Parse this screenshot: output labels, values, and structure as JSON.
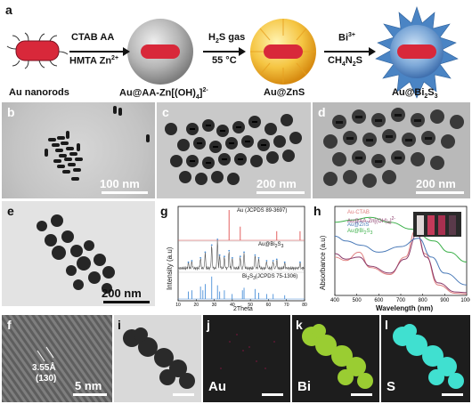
{
  "figure": {
    "panel_labels": {
      "a": "a",
      "b": "b",
      "c": "c",
      "d": "d",
      "e": "e",
      "f": "f",
      "g": "g",
      "h": "h",
      "i": "i",
      "j": "j",
      "k": "k",
      "l": "l"
    },
    "scheme": {
      "step1_top": "CTAB  AA",
      "step1_bottom": "HMTA  Zn",
      "step1_bottom_sup": "2+",
      "step2_top": "H",
      "step2_top_sub": "2",
      "step2_top_rest": "S gas",
      "step2_bottom": "55 °C",
      "step3_top": "Bi",
      "step3_top_sup": "3+",
      "step3_bottom": "CH",
      "step3_bottom_sub1": "4",
      "step3_bottom_mid": "N",
      "step3_bottom_sub2": "2",
      "step3_bottom_end": "S",
      "names": [
        "Au nanorods",
        "Au@AA-Zn[(OH)",
        "Au@ZnS",
        "Au@Bi"
      ],
      "name2_sub": "4",
      "name2_end": "]",
      "name2_sup": "2-",
      "name4_sub": "2",
      "name4_mid": "S",
      "name4_sub2": "3"
    },
    "scalebars": {
      "b": "100 nm",
      "c": "200 nm",
      "d": "200 nm",
      "e": "200 nm",
      "f": "5 nm"
    },
    "hrtem": {
      "spacing": "3.55Å",
      "plane": "(130)"
    },
    "maps": {
      "j": "Au",
      "k": "Bi",
      "l": "S"
    },
    "colors": {
      "au_rod": "#d8283a",
      "shell_gray": "#9c9c9c",
      "shell_yellow": "#f2b02c",
      "shell_blue": "#4a84c4",
      "bi_map": "#9acd32",
      "s_map": "#40e0d0",
      "au_map": "#5a1430"
    }
  },
  "chart_data": [
    {
      "type": "line",
      "panel": "g",
      "ylabel": "Intensity (a.u)",
      "xlabel": "2Theta",
      "x_ticks": [
        "10",
        "20",
        "30",
        "40",
        "50",
        "60",
        "70",
        "80"
      ],
      "xlim": [
        10,
        80
      ],
      "annotations": [
        "Au (JCPDS 89-3697)",
        "Au@Bi",
        "Bi",
        "(JCPDS 75-1306)"
      ],
      "annotation_subs": {
        "au_bi": "2",
        "au_bi_end": "S",
        "au_bi_sub2": "3",
        "bi2s3_a": "2",
        "bi2s3_mid": "S",
        "bi2s3_b": "3"
      },
      "series": [
        {
          "values": [
            {
              "x": 38.2,
              "h": 1.0
            },
            {
              "x": 44.4,
              "h": 0.45
            },
            {
              "x": 64.6,
              "h": 0.3
            },
            {
              "x": 77.5,
              "h": 0.3
            }
          ]
        },
        {
          "values": [
            {
              "x": 15.7,
              "h": 0.2
            },
            {
              "x": 17.6,
              "h": 0.25
            },
            {
              "x": 22.4,
              "h": 0.35
            },
            {
              "x": 25.0,
              "h": 0.55
            },
            {
              "x": 28.6,
              "h": 0.8
            },
            {
              "x": 31.8,
              "h": 1.0
            },
            {
              "x": 33.0,
              "h": 0.45
            },
            {
              "x": 35.6,
              "h": 0.4
            },
            {
              "x": 38.2,
              "h": 0.6
            },
            {
              "x": 40.0,
              "h": 0.35
            },
            {
              "x": 44.4,
              "h": 0.4
            },
            {
              "x": 46.5,
              "h": 0.55
            },
            {
              "x": 52.6,
              "h": 0.45
            },
            {
              "x": 54.6,
              "h": 0.35
            },
            {
              "x": 59.0,
              "h": 0.25
            },
            {
              "x": 62.6,
              "h": 0.25
            },
            {
              "x": 64.6,
              "h": 0.3
            },
            {
              "x": 69.0,
              "h": 0.2
            },
            {
              "x": 77.5,
              "h": 0.2
            }
          ]
        },
        {
          "values": [
            {
              "x": 15.7,
              "h": 0.3
            },
            {
              "x": 17.6,
              "h": 0.35
            },
            {
              "x": 22.4,
              "h": 0.5
            },
            {
              "x": 23.7,
              "h": 0.35
            },
            {
              "x": 25.0,
              "h": 0.6
            },
            {
              "x": 28.6,
              "h": 0.9
            },
            {
              "x": 31.8,
              "h": 0.55
            },
            {
              "x": 33.0,
              "h": 0.3
            },
            {
              "x": 35.6,
              "h": 0.35
            },
            {
              "x": 39.9,
              "h": 0.2
            },
            {
              "x": 45.6,
              "h": 0.35
            },
            {
              "x": 46.5,
              "h": 0.45
            },
            {
              "x": 52.6,
              "h": 0.4
            },
            {
              "x": 54.6,
              "h": 0.25
            },
            {
              "x": 59.0,
              "h": 0.2
            },
            {
              "x": 62.6,
              "h": 0.2
            },
            {
              "x": 69.0,
              "h": 0.15
            }
          ]
        }
      ]
    },
    {
      "type": "line",
      "panel": "h",
      "ylabel": "Absorbance (a.u)",
      "xlabel": "Wavelength (nm)",
      "x_ticks": [
        "400",
        "500",
        "600",
        "700",
        "800",
        "900",
        "1000"
      ],
      "xlim": [
        400,
        1000
      ],
      "legend": [
        "Au-CTAB",
        "Au@AA-Zn[(OH)",
        "Au@ZnS",
        "Au@Bi"
      ],
      "legend_subs": {
        "l2_sub": "4",
        "l2_end": "]",
        "l2_sup": "2-",
        "l4_sub": "2",
        "l4_mid": "S",
        "l4_sub2": "3"
      },
      "series": [
        {
          "color": "#e08080",
          "points": [
            [
              400,
              0.55
            ],
            [
              450,
              0.5
            ],
            [
              510,
              0.62
            ],
            [
              560,
              0.4
            ],
            [
              650,
              0.3
            ],
            [
              720,
              0.55
            ],
            [
              770,
              0.95
            ],
            [
              810,
              0.6
            ],
            [
              870,
              0.15
            ],
            [
              950,
              0.03
            ],
            [
              1000,
              0.02
            ]
          ]
        },
        {
          "color": "#8a3a6a",
          "points": [
            [
              400,
              0.6
            ],
            [
              450,
              0.52
            ],
            [
              510,
              0.55
            ],
            [
              560,
              0.42
            ],
            [
              650,
              0.32
            ],
            [
              720,
              0.52
            ],
            [
              775,
              0.88
            ],
            [
              815,
              0.55
            ],
            [
              870,
              0.18
            ],
            [
              950,
              0.05
            ],
            [
              1000,
              0.04
            ]
          ]
        },
        {
          "color": "#4a7ab8",
          "points": [
            [
              400,
              0.85
            ],
            [
              450,
              0.78
            ],
            [
              520,
              0.72
            ],
            [
              600,
              0.62
            ],
            [
              700,
              0.7
            ],
            [
              780,
              0.82
            ],
            [
              840,
              0.55
            ],
            [
              900,
              0.32
            ],
            [
              1000,
              0.15
            ]
          ]
        },
        {
          "color": "#3cb04a",
          "points": [
            [
              400,
              1.05
            ],
            [
              480,
              1.08
            ],
            [
              560,
              1.12
            ],
            [
              650,
              1.05
            ],
            [
              750,
              0.95
            ],
            [
              850,
              0.78
            ],
            [
              920,
              0.62
            ],
            [
              1000,
              0.48
            ]
          ]
        }
      ]
    }
  ]
}
